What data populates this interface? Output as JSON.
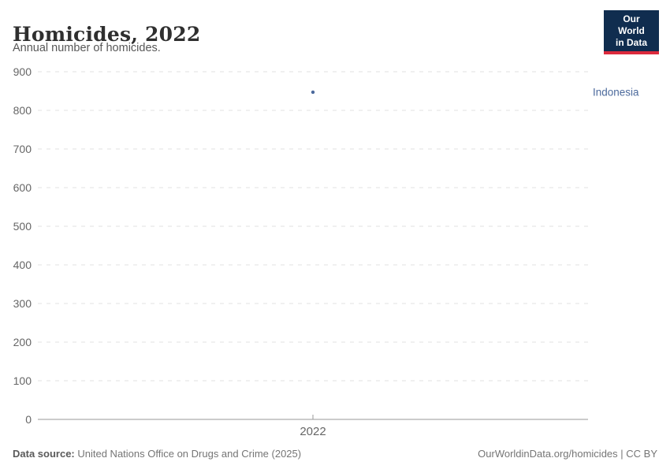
{
  "header": {
    "title": "Homicides, 2022",
    "subtitle": "Annual number of homicides.",
    "logo": {
      "line1": "Our World",
      "line2": "in Data"
    }
  },
  "chart_data": {
    "type": "scatter",
    "title": "Homicides, 2022",
    "subtitle": "Annual number of homicides.",
    "x": [
      2022
    ],
    "x_tick_labels": [
      "2022"
    ],
    "series": [
      {
        "name": "Indonesia",
        "values": [
          847
        ],
        "color": "#4C6A9C"
      }
    ],
    "xlabel": "",
    "ylabel": "",
    "ylim": [
      0,
      900
    ],
    "yticks": [
      0,
      100,
      200,
      300,
      400,
      500,
      600,
      700,
      800,
      900
    ],
    "grid": "horizontal-dashed",
    "legend_position": "entity-label-right"
  },
  "footer": {
    "source_label": "Data source:",
    "source_text": " United Nations Office on Drugs and Crime (2025)",
    "credit": "OurWorldinData.org/homicides | CC BY"
  },
  "colors": {
    "accent_blue": "#4C6A9C",
    "logo_bg": "#102d4f",
    "logo_red": "#dc2a3d",
    "gridline": "#e2e2e2",
    "axis_line": "#9a9a9a",
    "tick_label": "#666666",
    "title_text": "#2f2f2f",
    "subtitle_text": "#575757",
    "footer_text": "#757575"
  }
}
